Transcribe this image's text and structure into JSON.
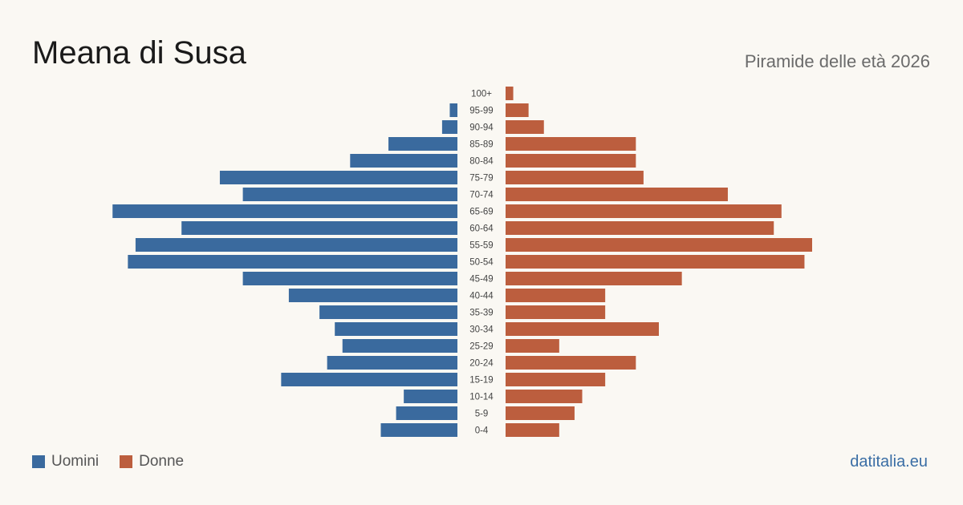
{
  "header": {
    "title": "Meana di Susa",
    "subtitle": "Piramide delle età 2026"
  },
  "footer": {
    "source": "datitalia.eu"
  },
  "colors": {
    "men": "#3a6a9e",
    "women": "#bc5e3e",
    "background": "#faf8f3"
  },
  "chart_data": {
    "type": "bar",
    "orientation": "horizontal-pyramid",
    "categories": [
      "100+",
      "95-99",
      "90-94",
      "85-89",
      "80-84",
      "75-79",
      "70-74",
      "65-69",
      "60-64",
      "55-59",
      "50-54",
      "45-49",
      "40-44",
      "35-39",
      "30-34",
      "25-29",
      "20-24",
      "15-19",
      "10-14",
      "5-9",
      "0-4"
    ],
    "series": [
      {
        "name": "Uomini",
        "color": "#3a6a9e",
        "values": [
          0,
          1,
          2,
          9,
          14,
          31,
          28,
          45,
          36,
          42,
          43,
          28,
          22,
          18,
          16,
          15,
          17,
          23,
          7,
          8,
          10
        ]
      },
      {
        "name": "Donne",
        "color": "#bc5e3e",
        "values": [
          1,
          3,
          5,
          17,
          17,
          18,
          29,
          36,
          35,
          40,
          39,
          23,
          13,
          13,
          20,
          7,
          17,
          13,
          10,
          9,
          7
        ]
      }
    ],
    "legend_position": "bottom-left",
    "grid": false
  }
}
